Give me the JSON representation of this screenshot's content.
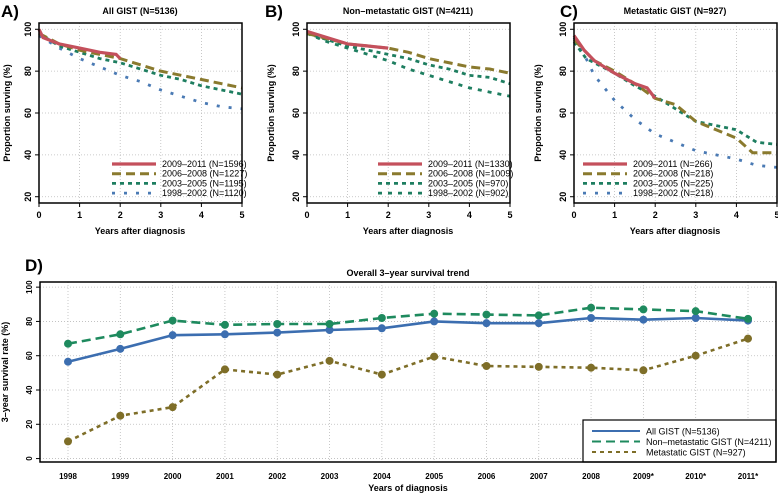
{
  "chart_data": [
    {
      "type": "line",
      "panel_label": "A)",
      "title": "All GIST (N=5136)",
      "xlabel": "Years after diagnosis",
      "ylabel": "Proportion surving (%)",
      "xlim": [
        0,
        5
      ],
      "ylim": [
        17,
        103
      ],
      "xticks": [
        0,
        1,
        2,
        3,
        4,
        5
      ],
      "yticks": [
        20,
        40,
        60,
        80,
        100
      ],
      "grid": true,
      "legend_position": "bottom-right",
      "series": [
        {
          "name": "2009–2011 (N=1596)",
          "color": "#c4505c",
          "style": "solid",
          "x": [
            0,
            0.1,
            0.5,
            1,
            1.5,
            1.9,
            2
          ],
          "y": [
            100,
            96,
            93,
            91,
            89,
            88,
            86
          ]
        },
        {
          "name": "2006–2008 (N=1227)",
          "color": "#8a7a2e",
          "style": "dashed",
          "x": [
            0,
            0.5,
            1,
            1.5,
            2,
            2.5,
            3,
            3.5,
            4,
            4.5,
            5
          ],
          "y": [
            98,
            93,
            90,
            88,
            86,
            83,
            80,
            78,
            76,
            74,
            72
          ]
        },
        {
          "name": "2003–2005 (N=1195)",
          "color": "#1e7e60",
          "style": "dotted",
          "x": [
            0,
            0.5,
            1,
            1.5,
            2,
            2.5,
            3,
            3.5,
            4,
            4.5,
            5
          ],
          "y": [
            98,
            92,
            89,
            86,
            84,
            81,
            78,
            76,
            73,
            71,
            69
          ]
        },
        {
          "name": "1998–2002 (N=1120)",
          "color": "#4a7ab4",
          "style": "sparse",
          "x": [
            0,
            0.5,
            1,
            1.5,
            2,
            2.5,
            3,
            3.5,
            4,
            4.5,
            5
          ],
          "y": [
            97,
            91,
            86,
            82,
            78,
            75,
            71,
            68,
            65,
            63,
            62
          ]
        }
      ]
    },
    {
      "type": "line",
      "panel_label": "B)",
      "title": "Non–metastatic GIST (N=4211)",
      "xlabel": "Years after diagnosis",
      "ylabel": "Proportion surving (%)",
      "xlim": [
        0,
        5
      ],
      "ylim": [
        17,
        103
      ],
      "xticks": [
        0,
        1,
        2,
        3,
        4,
        5
      ],
      "yticks": [
        20,
        40,
        60,
        80,
        100
      ],
      "grid": true,
      "legend_position": "bottom-right",
      "series": [
        {
          "name": "2009–2011 (N=1330)",
          "color": "#c4505c",
          "style": "solid",
          "x": [
            0,
            0.5,
            1,
            1.5,
            2
          ],
          "y": [
            99,
            96,
            93,
            92,
            91
          ]
        },
        {
          "name": "2006–2008 (N=1009)",
          "color": "#8a7a2e",
          "style": "dashed",
          "x": [
            0,
            1,
            2,
            2.5,
            3,
            3.5,
            4,
            4.5,
            5
          ],
          "y": [
            98,
            93,
            91,
            89,
            86,
            84,
            82,
            81,
            79
          ]
        },
        {
          "name": "2003–2005 (N=970)",
          "color": "#1e7e60",
          "style": "dotted",
          "x": [
            0,
            0.5,
            1,
            1.5,
            2,
            2.5,
            3,
            3.5,
            4,
            4.5,
            5
          ],
          "y": [
            98,
            95,
            92,
            90,
            88,
            86,
            83,
            81,
            78,
            77,
            74
          ]
        },
        {
          "name": "1998–2002 (N=902)",
          "color": "#1e7e60",
          "style": "dotted2",
          "x": [
            0,
            0.5,
            1,
            1.5,
            2,
            2.5,
            3,
            3.5,
            4,
            4.5,
            5
          ],
          "y": [
            98,
            94,
            91,
            88,
            85,
            81,
            78,
            75,
            72,
            70,
            68
          ]
        }
      ]
    },
    {
      "type": "line",
      "panel_label": "C)",
      "title": "Metastatic GIST (N=927)",
      "xlabel": "Years after diagnosis",
      "ylabel": "Proportion surving (%)",
      "xlim": [
        0,
        5
      ],
      "ylim": [
        17,
        103
      ],
      "xticks": [
        0,
        1,
        2,
        3,
        4,
        5
      ],
      "yticks": [
        20,
        40,
        60,
        80,
        100
      ],
      "grid": true,
      "legend_position": "bottom-left",
      "series": [
        {
          "name": "2009–2011 (N=266)",
          "color": "#c4505c",
          "style": "solid",
          "x": [
            0,
            0.25,
            0.5,
            1,
            1.5,
            1.8,
            2
          ],
          "y": [
            97,
            90,
            85,
            79,
            74,
            72,
            67
          ]
        },
        {
          "name": "2006–2008 (N=218)",
          "color": "#8a7a2e",
          "style": "dashed",
          "x": [
            0,
            0.5,
            1,
            1.5,
            2,
            2.5,
            3,
            3.5,
            4,
            4.4,
            5
          ],
          "y": [
            95,
            85,
            80,
            74,
            67,
            64,
            56,
            52,
            48,
            41,
            41
          ]
        },
        {
          "name": "2003–2005 (N=225)",
          "color": "#1e7e60",
          "style": "dotted",
          "x": [
            0,
            0.3,
            0.5,
            1,
            1.5,
            2,
            2.5,
            3,
            3.5,
            4,
            4.5,
            5
          ],
          "y": [
            94,
            86,
            84,
            79,
            73,
            68,
            62,
            56,
            54,
            52,
            46,
            45
          ]
        },
        {
          "name": "1998–2002 (N=218)",
          "color": "#4a7ab4",
          "style": "sparse",
          "x": [
            0,
            0.3,
            0.5,
            1,
            1.5,
            2,
            2.5,
            3,
            3.5,
            4,
            4.5,
            5
          ],
          "y": [
            96,
            86,
            78,
            66,
            57,
            50,
            46,
            42,
            40,
            38,
            35,
            34
          ]
        }
      ]
    },
    {
      "type": "line",
      "panel_label": "D)",
      "title": "Overall 3–year survival trend",
      "xlabel": "Years of diagnosis",
      "ylabel": "3–year survival rate (%)",
      "ylim": [
        -2,
        103
      ],
      "yticks": [
        0,
        20,
        40,
        60,
        80,
        100
      ],
      "categories": [
        "1998",
        "1999",
        "2000",
        "2001",
        "2002",
        "2003",
        "2004",
        "2005",
        "2006",
        "2007",
        "2008",
        "2009*",
        "2010*",
        "2011*"
      ],
      "grid": true,
      "legend_position": "bottom-right",
      "series": [
        {
          "name": "All GIST (N=5136)",
          "color": "#3c6eb0",
          "style": "solid",
          "values": [
            56.5,
            64,
            72,
            72.5,
            73.5,
            75,
            76,
            80,
            79,
            79,
            82,
            81,
            82,
            80.5
          ]
        },
        {
          "name": "Non–metastatic GIST (N=4211)",
          "color": "#1e8a5e",
          "style": "dashed",
          "values": [
            67,
            72.5,
            80.5,
            78,
            78.5,
            78.5,
            82,
            84.5,
            84,
            83.5,
            88,
            87,
            86,
            81.5
          ]
        },
        {
          "name": "Metastatic GIST (N=927)",
          "color": "#7e6e28",
          "style": "dotted",
          "values": [
            10,
            25,
            30,
            52,
            49,
            57,
            49,
            59.5,
            54,
            53.5,
            53,
            51.5,
            60,
            70
          ]
        }
      ]
    }
  ]
}
